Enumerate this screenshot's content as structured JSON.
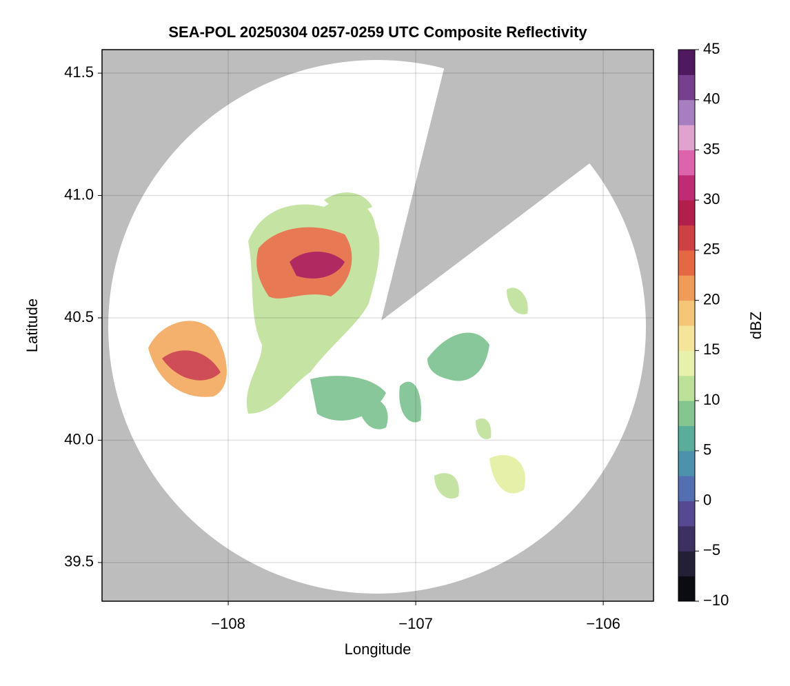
{
  "chart_data": {
    "type": "radar-map",
    "title": "SEA-POL 20250304 0257-0259 UTC Composite Reflectivity",
    "xlabel": "Longitude",
    "ylabel": "Latitude",
    "xlim": [
      -108.673,
      -105.732
    ],
    "ylim": [
      39.342,
      41.596
    ],
    "xticks": [
      {
        "value": -108,
        "label": "−108"
      },
      {
        "value": -107,
        "label": "−107"
      },
      {
        "value": -106,
        "label": "−106"
      }
    ],
    "yticks": [
      {
        "value": 39.5,
        "label": "39.5"
      },
      {
        "value": 40,
        "label": "40.0"
      },
      {
        "value": 40.5,
        "label": "40.5"
      },
      {
        "value": 41,
        "label": "41.0"
      },
      {
        "value": 41.5,
        "label": "41.5"
      }
    ],
    "grid": true,
    "colorbar": {
      "label": "dBZ",
      "lim": [
        -10,
        45
      ],
      "ticks": [
        {
          "value": -10,
          "label": "−10"
        },
        {
          "value": -5,
          "label": "−5"
        },
        0,
        5,
        10,
        15,
        20,
        25,
        30,
        35,
        40,
        45
      ],
      "colors": [
        "#000000",
        "#1c1a2c",
        "#3a2f5e",
        "#5b4c9a",
        "#4f7fbd",
        "#4aa39d",
        "#7cc18e",
        "#bfe29a",
        "#f4f6b0",
        "#f6d98a",
        "#f3a95e",
        "#e56b43",
        "#c93a45",
        "#a8124f",
        "#d8449a",
        "#e9a8d2",
        "#a47cbe",
        "#6a2f80",
        "#3a0a48"
      ]
    }
  }
}
